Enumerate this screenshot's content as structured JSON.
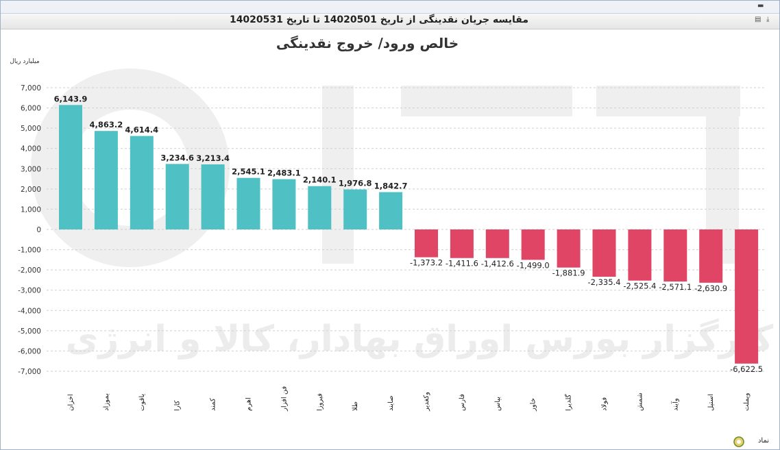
{
  "window": {
    "title": "مقایسه جریان نقدینگی از تاریخ 14020501 تا تاریخ 14020531"
  },
  "toolbar": {
    "icons": [
      "minimize-icon",
      "print-icon",
      "export-icon"
    ],
    "symbol_label": "نماد"
  },
  "colors": {
    "positive": "#4fc0c4",
    "negative": "#e04566",
    "watermark": "#eeeeee"
  },
  "watermark_text": "کارگزار بورس اوراق بهادار، کالا و انرژی",
  "chart_data": {
    "type": "bar",
    "title": "خالص ورود/ خروج نقدینگی",
    "ylabel": "میلیارد ریال",
    "xlabel": "نماد",
    "ylim": [
      -7000,
      7000
    ],
    "yticks": [
      7000,
      6000,
      5000,
      4000,
      3000,
      2000,
      1000,
      0,
      -1000,
      -2000,
      -3000,
      -4000,
      -5000,
      -6000,
      -7000
    ],
    "ytick_labels": [
      "7,000",
      "6,000",
      "5,000",
      "4,000",
      "3,000",
      "2,000",
      "1,000",
      "0",
      "-1,000",
      "-2,000",
      "-3,000",
      "-4,000",
      "-5,000",
      "-6,000",
      "-7,000"
    ],
    "grid": true,
    "categories": [
      "اخزان",
      "بموزاد",
      "یاقوت",
      "کارا",
      "کمند",
      "اهرم",
      "فن افزار",
      "فیروزا",
      "طلا",
      "صایند",
      "وکغدیر",
      "فارس",
      "بپاس",
      "خاور",
      "گلدیرا",
      "فولاد",
      "شمش",
      "وآیند",
      "استیل",
      "ویملت"
    ],
    "values": [
      6143.9,
      4863.2,
      4614.4,
      3234.6,
      3213.4,
      2545.1,
      2483.1,
      2140.1,
      1976.8,
      1842.7,
      -1373.2,
      -1411.6,
      -1412.6,
      -1499.0,
      -1881.9,
      -2335.4,
      -2525.4,
      -2571.1,
      -2630.9,
      -6622.5
    ],
    "labels": [
      "6,143.9",
      "4,863.2",
      "4,614.4",
      "3,234.6",
      "3,213.4",
      "2,545.1",
      "2,483.1",
      "2,140.1",
      "1,976.8",
      "1,842.7",
      "-1,373.2",
      "-1,411.6",
      "-1,412.6",
      "-1,499.0",
      "-1,881.9",
      "-2,335.4",
      "-2,525.4",
      "-2,571.1",
      "-2,630.9",
      "-6,622.5"
    ]
  }
}
